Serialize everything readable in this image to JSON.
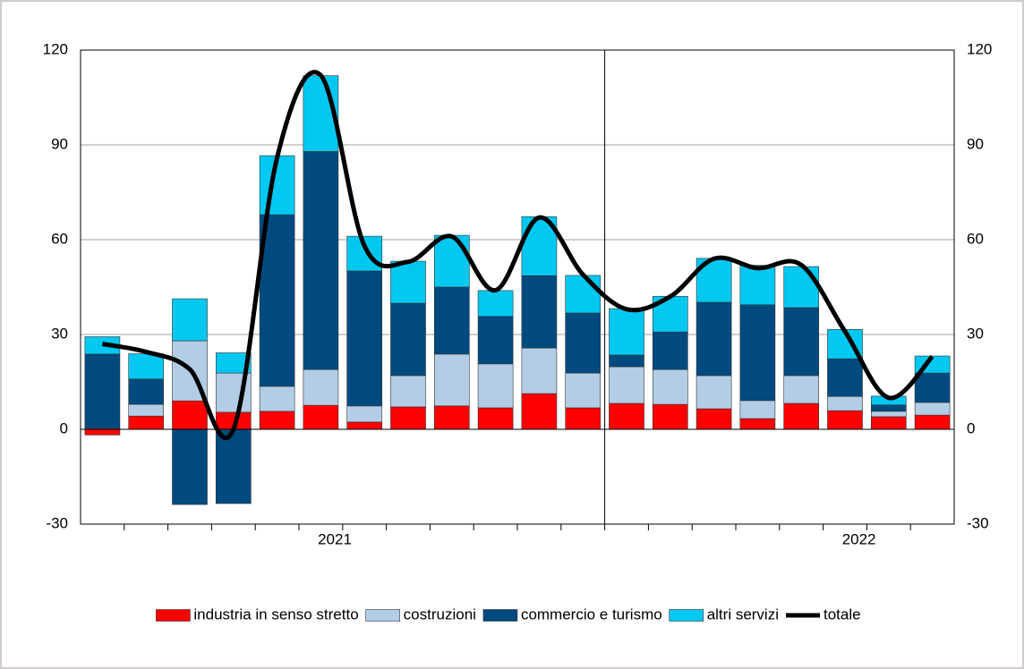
{
  "chart_data": {
    "type": "bar",
    "stacked": true,
    "categories": [
      null,
      null,
      null,
      null,
      null,
      "2021",
      null,
      null,
      null,
      null,
      null,
      null,
      null,
      null,
      null,
      null,
      null,
      "2022",
      null,
      null
    ],
    "series": [
      {
        "name": "industria in senso stretto",
        "color": "#ff0000",
        "values": [
          -1.8,
          4.2,
          9,
          5.4,
          5.7,
          7.6,
          2.3,
          7.1,
          7.4,
          6.8,
          11.3,
          6.8,
          8.2,
          7.9,
          6.5,
          3.4,
          8.2,
          5.9,
          4,
          4.5
        ]
      },
      {
        "name": "costruzioni",
        "color": "#b3cde6",
        "values": [
          0.3,
          3.7,
          19,
          12.4,
          7.9,
          11.3,
          5.1,
          9.9,
          16.4,
          13.9,
          14.4,
          11,
          11.6,
          11,
          10.5,
          5.7,
          8.8,
          4.5,
          1.7,
          4
        ]
      },
      {
        "name": "commercio e turismo",
        "color": "#004a80",
        "values": [
          23.5,
          8,
          -23.8,
          -23.5,
          54.3,
          69,
          42.7,
          22.9,
          21.2,
          15,
          22.9,
          19,
          3.7,
          11.9,
          23.2,
          30.3,
          21.5,
          11.9,
          2,
          9.3
        ]
      },
      {
        "name": "altri servizi",
        "color": "#00c8f0",
        "values": [
          5.5,
          8,
          13.3,
          6.4,
          18.7,
          24,
          11,
          13.3,
          16.4,
          8.2,
          18.7,
          11.9,
          14.7,
          11.3,
          13.9,
          12.5,
          13,
          9.3,
          2.8,
          5.4
        ]
      },
      {
        "name": "totale",
        "color": "#000000",
        "type": "line",
        "smooth": true,
        "values": [
          27,
          24.5,
          19,
          0,
          86,
          112,
          58,
          53,
          61,
          44,
          67,
          49,
          38,
          42,
          54,
          51,
          52,
          31,
          10,
          23
        ]
      }
    ],
    "ylim": [
      -30,
      120
    ],
    "yticks": [
      -30,
      0,
      30,
      60,
      90,
      120
    ],
    "y2lim": [
      -30,
      120
    ],
    "y2ticks": [
      -30,
      0,
      30,
      60,
      90,
      120
    ],
    "grid": true,
    "legend": "bottom"
  }
}
